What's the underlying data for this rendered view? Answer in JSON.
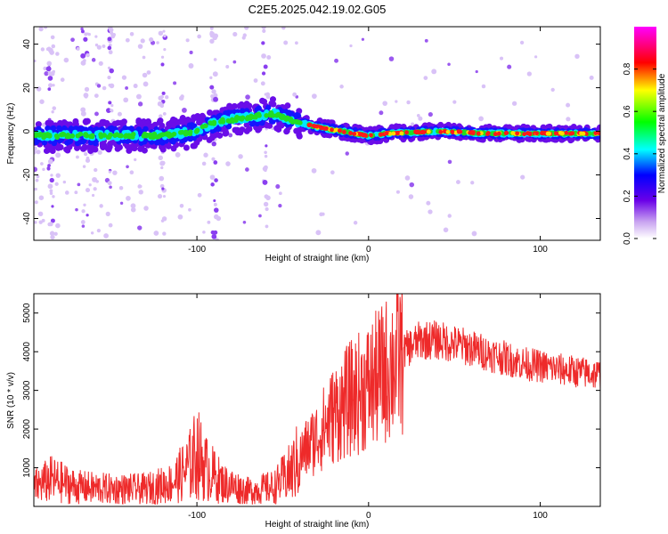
{
  "title": "C2E5.2025.042.19.02.G05",
  "chart_data": [
    {
      "type": "heatmap",
      "xlabel": "Height of straight line (km)",
      "ylabel": "Frequency (Hz)",
      "xlim": [
        -195,
        135
      ],
      "ylim": [
        -50,
        48
      ],
      "x_ticks": [
        -100,
        0,
        100
      ],
      "y_ticks": [
        -40,
        -20,
        0,
        20,
        40
      ],
      "colorbar": {
        "label": "Normalized spectral amplitude",
        "range": [
          0,
          1
        ],
        "ticks": [
          "0.0",
          "0.2",
          "0.4",
          "0.6",
          "0.8"
        ],
        "colormap": [
          "#ffffff",
          "#8a2be2",
          "#0000ff",
          "#00ffff",
          "#00ff00",
          "#ffff00",
          "#ff0000",
          "#ff00ff"
        ]
      },
      "center_track": [
        {
          "x": -195,
          "y": -2
        },
        {
          "x": -150,
          "y": -2
        },
        {
          "x": -120,
          "y": -2
        },
        {
          "x": -100,
          "y": 0
        },
        {
          "x": -90,
          "y": 4
        },
        {
          "x": -75,
          "y": 6
        },
        {
          "x": -55,
          "y": 8
        },
        {
          "x": -45,
          "y": 5
        },
        {
          "x": -30,
          "y": 2
        },
        {
          "x": -15,
          "y": 0
        },
        {
          "x": 0,
          "y": -2
        },
        {
          "x": 10,
          "y": -1
        },
        {
          "x": 40,
          "y": 0
        },
        {
          "x": 70,
          "y": -1
        },
        {
          "x": 100,
          "y": -1
        },
        {
          "x": 135,
          "y": -1
        }
      ]
    },
    {
      "type": "line",
      "xlabel": "Height of straight line (km)",
      "ylabel": "SNR (10 * v/v)",
      "xlim": [
        -195,
        135
      ],
      "ylim": [
        0,
        5500
      ],
      "x_ticks": [
        -100,
        0,
        100
      ],
      "y_ticks": [
        1000,
        2000,
        3000,
        4000,
        5000
      ],
      "series": [
        {
          "color": "#ee2a2a",
          "envelope": [
            {
              "x": -195,
              "y": 500
            },
            {
              "x": -185,
              "y": 700
            },
            {
              "x": -170,
              "y": 500
            },
            {
              "x": -150,
              "y": 450
            },
            {
              "x": -130,
              "y": 450
            },
            {
              "x": -115,
              "y": 600
            },
            {
              "x": -105,
              "y": 1000
            },
            {
              "x": -100,
              "y": 1400
            },
            {
              "x": -95,
              "y": 1000
            },
            {
              "x": -85,
              "y": 600
            },
            {
              "x": -70,
              "y": 400
            },
            {
              "x": -55,
              "y": 500
            },
            {
              "x": -45,
              "y": 900
            },
            {
              "x": -38,
              "y": 1400
            },
            {
              "x": -30,
              "y": 1800
            },
            {
              "x": -20,
              "y": 2400
            },
            {
              "x": -10,
              "y": 2800
            },
            {
              "x": 0,
              "y": 3100
            },
            {
              "x": 10,
              "y": 3500
            },
            {
              "x": 20,
              "y": 4000
            },
            {
              "x": 30,
              "y": 4300
            },
            {
              "x": 40,
              "y": 4300
            },
            {
              "x": 55,
              "y": 4150
            },
            {
              "x": 70,
              "y": 3950
            },
            {
              "x": 90,
              "y": 3700
            },
            {
              "x": 110,
              "y": 3550
            },
            {
              "x": 135,
              "y": 3400
            }
          ]
        }
      ]
    }
  ]
}
